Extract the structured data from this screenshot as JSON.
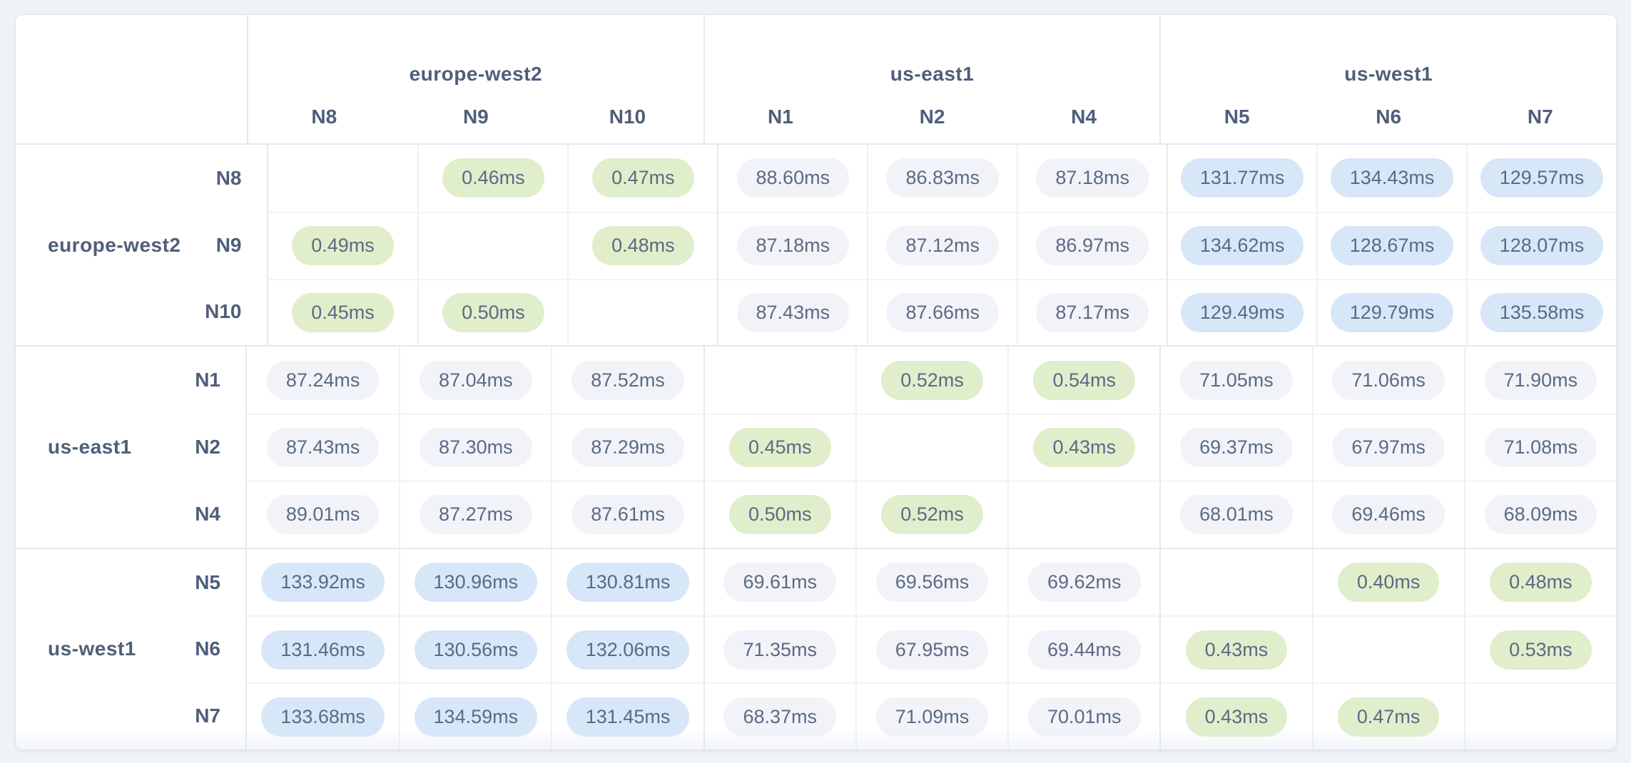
{
  "colors": {
    "page_background": "#eff2f7",
    "card_background": "#ffffff",
    "card_border": "#e1e6ef",
    "grid_line_strong": "#e3e8f1",
    "grid_line_faint": "#eef1f6",
    "row_line_faint": "#f0f3f8",
    "header_text": "#4f5e7a",
    "value_text": "#5b6a84",
    "pill_low": "#e0eecb",
    "pill_mid": "#f1f3f8",
    "pill_high": "#d7e7f8"
  },
  "matrix": {
    "unit_suffix": "ms",
    "legend_bands": {
      "low_max_ms": 1,
      "high_min_ms": 100
    },
    "column_groups": [
      {
        "region": "europe-west2",
        "nodes": [
          "N8",
          "N9",
          "N10"
        ]
      },
      {
        "region": "us-east1",
        "nodes": [
          "N1",
          "N2",
          "N4"
        ]
      },
      {
        "region": "us-west1",
        "nodes": [
          "N5",
          "N6",
          "N7"
        ]
      }
    ],
    "row_groups": [
      {
        "region": "europe-west2",
        "rows": [
          {
            "node": "N8",
            "values": [
              null,
              "0.46ms",
              "0.47ms",
              "88.60ms",
              "86.83ms",
              "87.18ms",
              "131.77ms",
              "134.43ms",
              "129.57ms"
            ]
          },
          {
            "node": "N9",
            "values": [
              "0.49ms",
              null,
              "0.48ms",
              "87.18ms",
              "87.12ms",
              "86.97ms",
              "134.62ms",
              "128.67ms",
              "128.07ms"
            ]
          },
          {
            "node": "N10",
            "values": [
              "0.45ms",
              "0.50ms",
              null,
              "87.43ms",
              "87.66ms",
              "87.17ms",
              "129.49ms",
              "129.79ms",
              "135.58ms"
            ]
          }
        ]
      },
      {
        "region": "us-east1",
        "rows": [
          {
            "node": "N1",
            "values": [
              "87.24ms",
              "87.04ms",
              "87.52ms",
              null,
              "0.52ms",
              "0.54ms",
              "71.05ms",
              "71.06ms",
              "71.90ms"
            ]
          },
          {
            "node": "N2",
            "values": [
              "87.43ms",
              "87.30ms",
              "87.29ms",
              "0.45ms",
              null,
              "0.43ms",
              "69.37ms",
              "67.97ms",
              "71.08ms"
            ]
          },
          {
            "node": "N4",
            "values": [
              "89.01ms",
              "87.27ms",
              "87.61ms",
              "0.50ms",
              "0.52ms",
              null,
              "68.01ms",
              "69.46ms",
              "68.09ms"
            ]
          }
        ]
      },
      {
        "region": "us-west1",
        "rows": [
          {
            "node": "N5",
            "values": [
              "133.92ms",
              "130.96ms",
              "130.81ms",
              "69.61ms",
              "69.56ms",
              "69.62ms",
              null,
              "0.40ms",
              "0.48ms"
            ]
          },
          {
            "node": "N6",
            "values": [
              "131.46ms",
              "130.56ms",
              "132.06ms",
              "71.35ms",
              "67.95ms",
              "69.44ms",
              "0.43ms",
              null,
              "0.53ms"
            ]
          },
          {
            "node": "N7",
            "values": [
              "133.68ms",
              "134.59ms",
              "131.45ms",
              "68.37ms",
              "71.09ms",
              "70.01ms",
              "0.43ms",
              "0.47ms",
              null
            ]
          }
        ]
      }
    ]
  }
}
